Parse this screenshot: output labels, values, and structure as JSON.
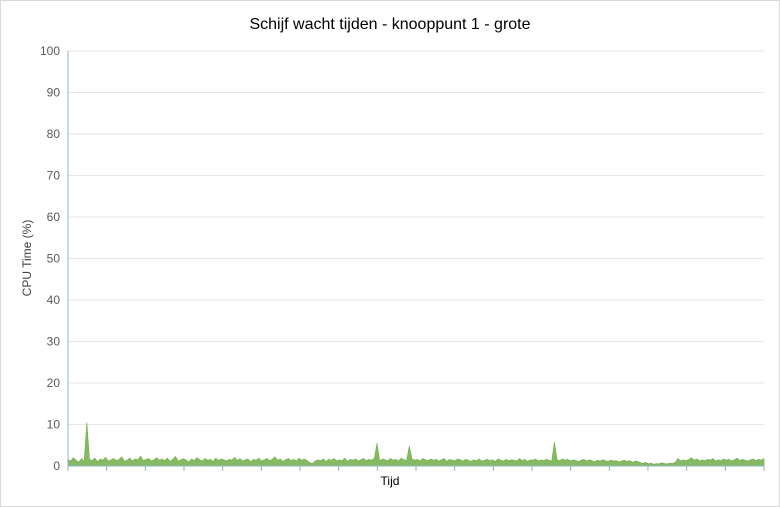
{
  "chart_data": {
    "type": "area",
    "title": "Schijf wacht tijden - knooppunt 1 - grote",
    "xlabel": "Tijd",
    "ylabel": "CPU Time (%)",
    "ylim": [
      0,
      100
    ],
    "yticks": [
      0,
      10,
      20,
      30,
      40,
      50,
      60,
      70,
      80,
      90,
      100
    ],
    "grid": true,
    "legend": "none",
    "x_tick_marks": 18,
    "series": [
      {
        "color": "#70ad47",
        "values": [
          1.5,
          1.2,
          2.0,
          1.4,
          0.9,
          1.8,
          1.1,
          10.5,
          1.6,
          1.3,
          1.9,
          1.0,
          1.7,
          1.4,
          2.1,
          1.2,
          1.5,
          1.8,
          1.3,
          1.6,
          2.2,
          1.1,
          1.4,
          1.9,
          1.2,
          1.7,
          1.5,
          2.4,
          1.3,
          1.6,
          1.8,
          1.2,
          1.5,
          2.0,
          1.4,
          1.7,
          1.3,
          1.9,
          1.1,
          1.6,
          2.3,
          1.2,
          1.5,
          1.8,
          1.4,
          1.0,
          1.7,
          1.3,
          2.0,
          1.5,
          1.2,
          1.8,
          1.4,
          1.6,
          1.1,
          1.9,
          1.3,
          1.7,
          1.5,
          1.2,
          1.6,
          1.4,
          2.1,
          1.3,
          1.8,
          1.2,
          1.5,
          1.7,
          1.0,
          1.6,
          1.4,
          1.9,
          1.2,
          1.5,
          1.8,
          1.3,
          1.6,
          2.2,
          1.4,
          1.7,
          1.1,
          1.5,
          1.8,
          1.3,
          1.6,
          1.2,
          1.9,
          1.4,
          1.7,
          1.3,
          0.8,
          0.6,
          1.2,
          1.5,
          1.3,
          1.7,
          1.1,
          1.6,
          1.4,
          1.8,
          1.2,
          1.5,
          1.3,
          1.9,
          1.1,
          1.6,
          1.4,
          1.7,
          1.2,
          1.5,
          1.8,
          1.3,
          1.6,
          1.4,
          1.9,
          5.5,
          1.2,
          1.7,
          1.5,
          1.3,
          1.8,
          1.4,
          1.6,
          1.2,
          1.9,
          1.5,
          1.3,
          4.8,
          1.7,
          1.4,
          1.6,
          1.2,
          1.8,
          1.5,
          1.3,
          1.7,
          1.4,
          1.6,
          1.2,
          1.5,
          1.8,
          1.1,
          1.6,
          1.4,
          1.3,
          1.7,
          1.5,
          1.2,
          1.6,
          1.4,
          1.1,
          1.5,
          1.3,
          1.7,
          1.2,
          1.4,
          1.6,
          1.3,
          1.5,
          1.1,
          1.7,
          1.4,
          1.2,
          1.6,
          1.3,
          1.5,
          1.4,
          1.2,
          1.8,
          1.3,
          1.6,
          1.1,
          1.5,
          1.4,
          1.7,
          1.2,
          1.5,
          1.3,
          1.6,
          1.4,
          1.2,
          5.8,
          1.5,
          1.3,
          1.7,
          1.4,
          1.6,
          1.2,
          1.5,
          1.3,
          1.1,
          1.4,
          1.6,
          1.2,
          1.5,
          1.3,
          1.0,
          1.4,
          1.2,
          1.5,
          1.3,
          1.1,
          1.4,
          1.2,
          1.3,
          1.0,
          1.2,
          1.4,
          1.1,
          1.3,
          0.9,
          1.2,
          1.1,
          0.8,
          0.6,
          0.9,
          0.5,
          0.7,
          0.4,
          0.6,
          0.5,
          0.8,
          0.6,
          0.5,
          0.7,
          0.6,
          0.9,
          1.8,
          1.2,
          1.5,
          1.3,
          1.6,
          2.0,
          1.4,
          1.7,
          1.2,
          1.5,
          1.3,
          1.6,
          1.4,
          1.8,
          1.2,
          1.5,
          1.3,
          1.7,
          1.4,
          1.6,
          1.2,
          1.5,
          1.9,
          1.3,
          1.6,
          1.4,
          1.2,
          1.5,
          1.7,
          1.3,
          1.6,
          1.4,
          1.8
        ]
      }
    ]
  }
}
